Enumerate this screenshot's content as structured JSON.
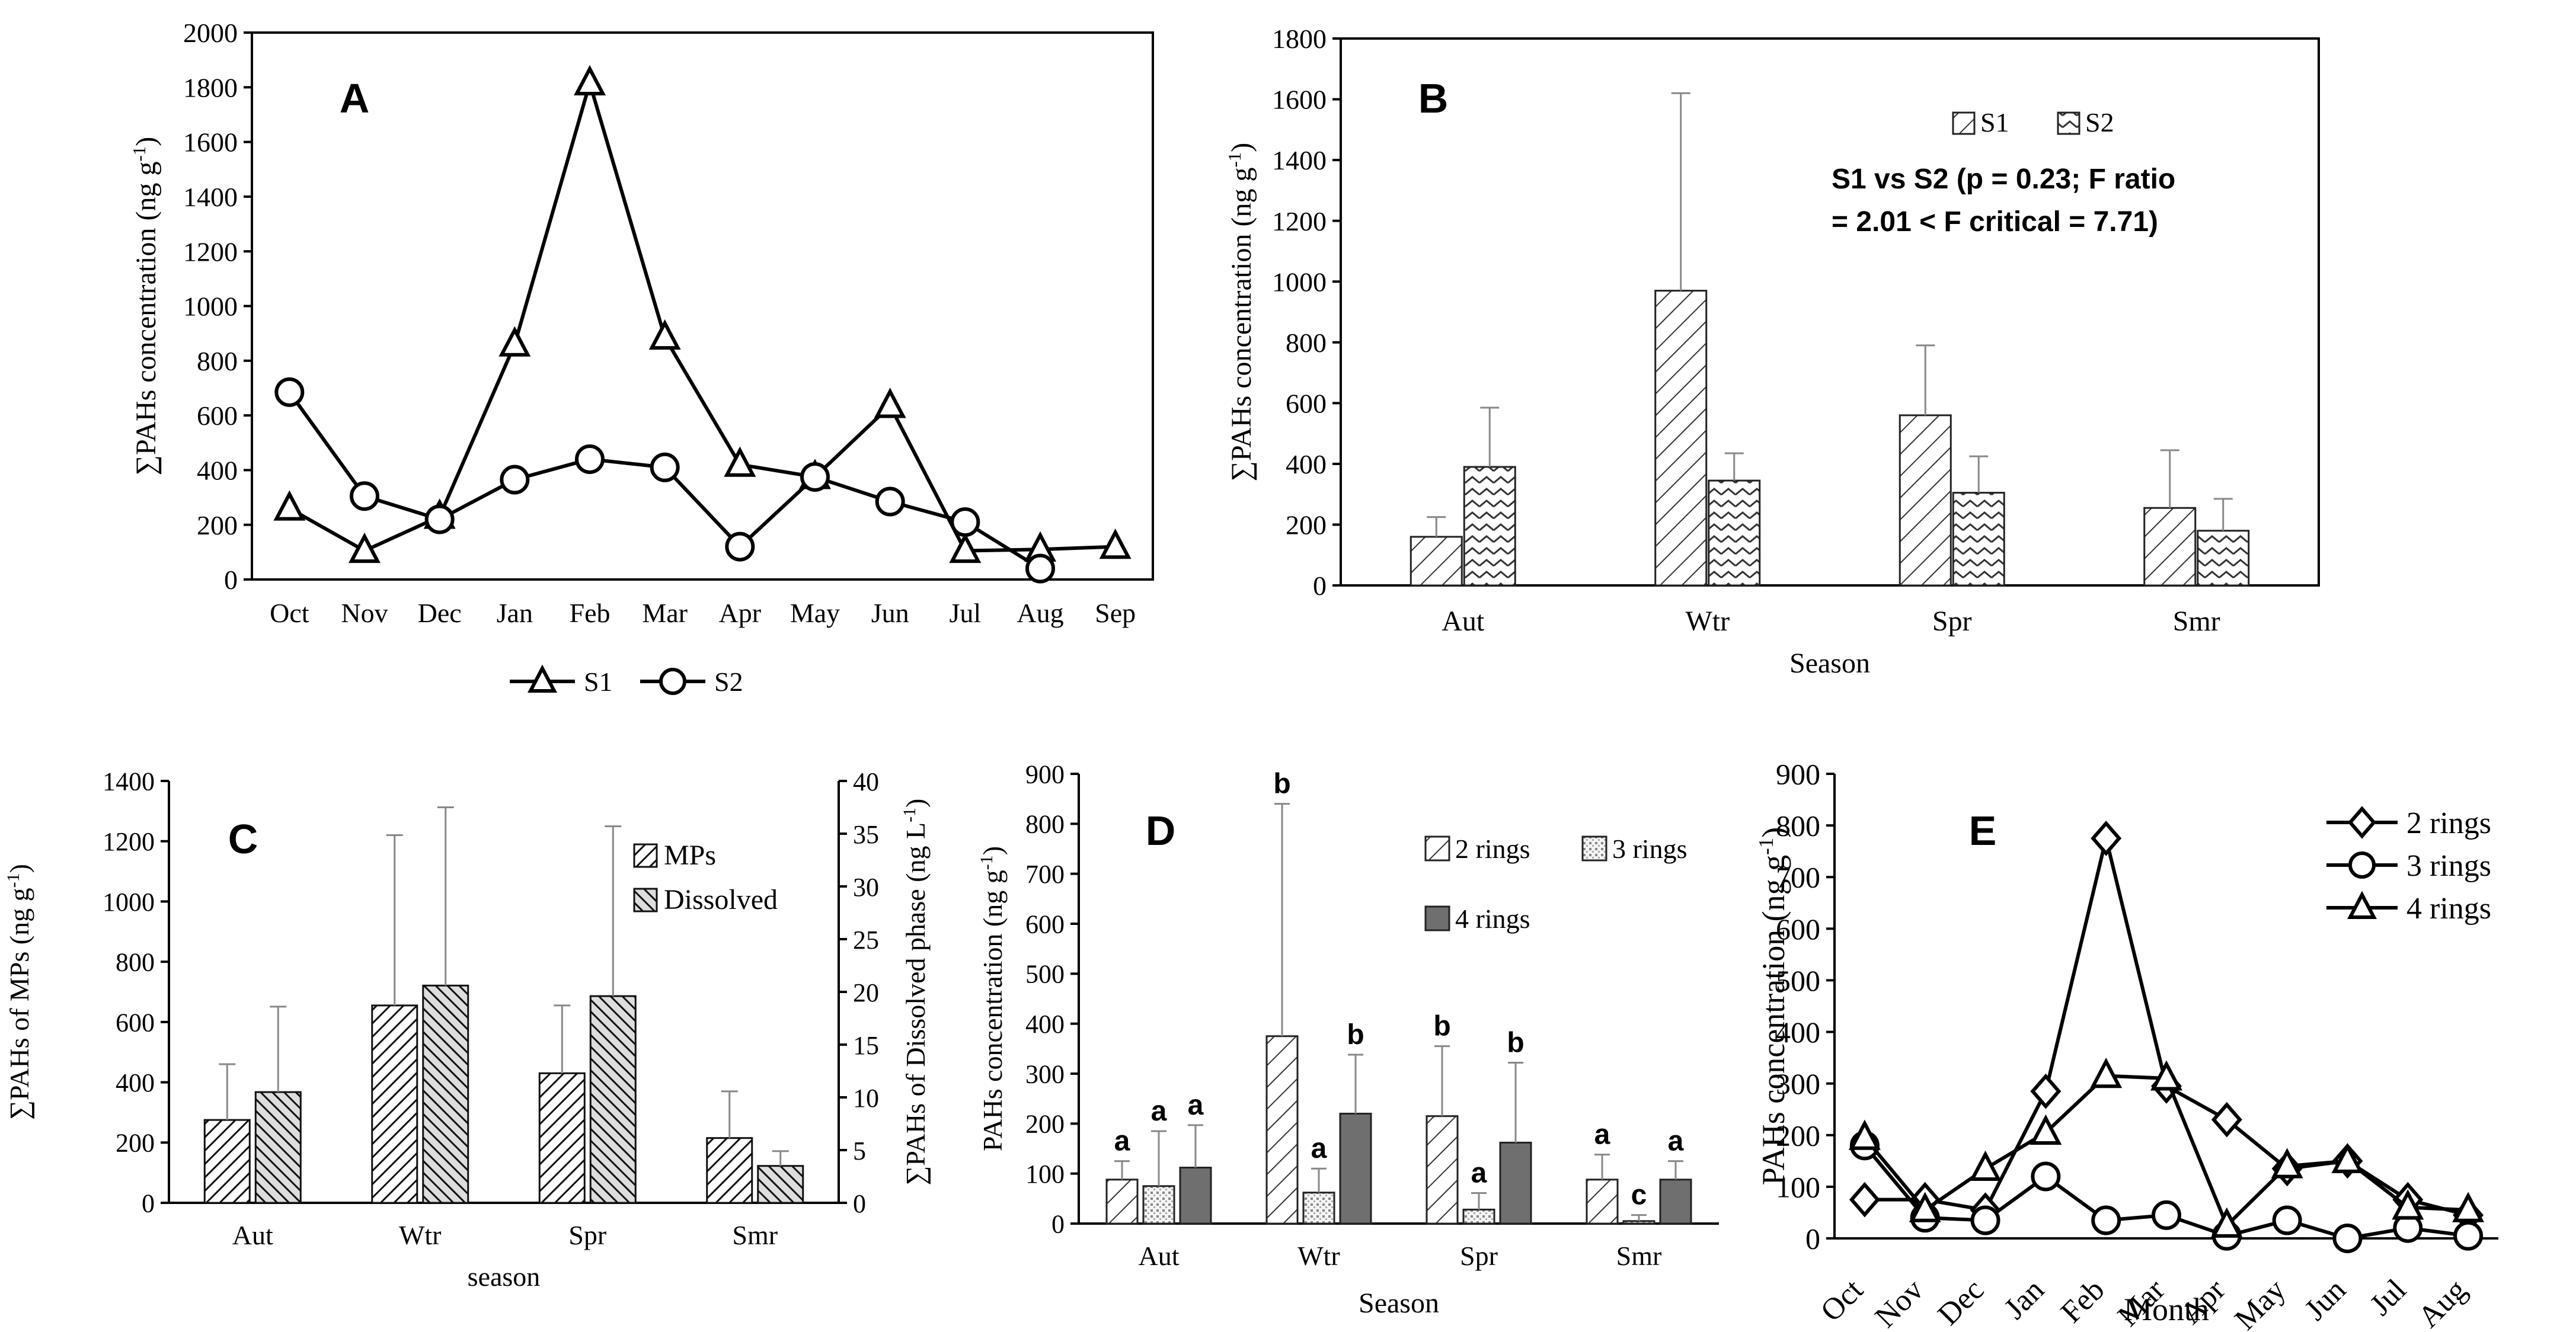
{
  "chart_data": [
    {
      "id": "A",
      "panel_label": "A",
      "type": "line",
      "categories": [
        "Oct",
        "Nov",
        "Dec",
        "Jan",
        "Feb",
        "Mar",
        "Apr",
        "May",
        "Jun",
        "Jul",
        "Aug",
        "Sep"
      ],
      "series": [
        {
          "name": "S1",
          "marker": "triangle",
          "values": [
            260,
            105,
            230,
            860,
            1815,
            885,
            420,
            375,
            635,
            105,
            110,
            120
          ]
        },
        {
          "name": "S2",
          "marker": "circle",
          "values": [
            685,
            305,
            220,
            365,
            440,
            410,
            120,
            375,
            285,
            210,
            40,
            null
          ]
        }
      ],
      "ylabel": "∑PAHs concentration (ng g-1)",
      "ylim": [
        0,
        2000
      ],
      "yticks": [
        0,
        200,
        400,
        600,
        800,
        1000,
        1200,
        1400,
        1600,
        1800,
        2000
      ],
      "legend": "bottom"
    },
    {
      "id": "B",
      "panel_label": "B",
      "type": "bar",
      "categories": [
        "Aut",
        "Wtr",
        "Spr",
        "Smr"
      ],
      "series": [
        {
          "name": "S1",
          "pattern": "hatch",
          "values": [
            160,
            970,
            560,
            255
          ],
          "errors": [
            65,
            650,
            230,
            190
          ]
        },
        {
          "name": "S2",
          "pattern": "zigzag",
          "values": [
            390,
            345,
            305,
            180
          ],
          "errors": [
            195,
            90,
            120,
            105
          ]
        }
      ],
      "xlabel": "Season",
      "ylabel": "∑PAHs concentration (ng g-1)",
      "ylim": [
        0,
        1800
      ],
      "yticks": [
        0,
        200,
        400,
        600,
        800,
        1000,
        1200,
        1400,
        1600,
        1800
      ],
      "annotation": [
        "S1 vs S2 (p = 0.23; F ratio",
        "= 2.01 < F critical = 7.71)"
      ],
      "legend": "top-right"
    },
    {
      "id": "C",
      "panel_label": "C",
      "type": "bar",
      "categories": [
        "Aut",
        "Wtr",
        "Spr",
        "Smr"
      ],
      "series": [
        {
          "name": "MPs",
          "axis": "left",
          "pattern": "hatch-dense",
          "values": [
            275,
            655,
            430,
            215
          ],
          "errors": [
            185,
            565,
            225,
            155
          ]
        },
        {
          "name": "Dissolved",
          "axis": "right",
          "pattern": "hatch-dark",
          "values": [
            10.5,
            20.6,
            19.6,
            3.5
          ],
          "errors": [
            8.1,
            16.9,
            16.1,
            1.4
          ]
        }
      ],
      "xlabel": "season",
      "ylabel": "∑PAHs of MPs (ng g-1)",
      "y2label": "∑PAHs of Dissolved phase (ng L-1)",
      "ylim": [
        0,
        1400
      ],
      "yticks": [
        0,
        200,
        400,
        600,
        800,
        1000,
        1200,
        1400
      ],
      "y2lim": [
        0,
        40
      ],
      "y2ticks": [
        0,
        5,
        10,
        15,
        20,
        25,
        30,
        35,
        40
      ],
      "legend": "top-right"
    },
    {
      "id": "D",
      "panel_label": "D",
      "type": "bar",
      "categories": [
        "Aut",
        "Wtr",
        "Spr",
        "Smr"
      ],
      "series": [
        {
          "name": "2 rings",
          "pattern": "hatch",
          "values": [
            88,
            375,
            215,
            88
          ],
          "errors": [
            37,
            465,
            140,
            50
          ],
          "letters": [
            "a",
            "b",
            "b",
            "a"
          ]
        },
        {
          "name": "3 rings",
          "pattern": "dots",
          "values": [
            75,
            62,
            28,
            5
          ],
          "errors": [
            110,
            48,
            33,
            12
          ],
          "letters": [
            "a",
            "a",
            "a",
            "c"
          ]
        },
        {
          "name": "4 rings",
          "pattern": "solid-grey",
          "values": [
            112,
            220,
            162,
            88
          ],
          "errors": [
            85,
            118,
            160,
            37
          ],
          "letters": [
            "a",
            "b",
            "b",
            "a"
          ]
        }
      ],
      "xlabel": "Season",
      "ylabel": "PAHs concentration (ng g-1)",
      "ylim": [
        0,
        900
      ],
      "yticks": [
        0,
        100,
        200,
        300,
        400,
        500,
        600,
        700,
        800,
        900
      ],
      "legend": "top-right"
    },
    {
      "id": "E",
      "panel_label": "E",
      "type": "line",
      "categories": [
        "Oct",
        "Nov",
        "Dec",
        "Jan",
        "Feb",
        "Mar",
        "Apr",
        "May",
        "Jun",
        "Jul",
        "Aug"
      ],
      "series": [
        {
          "name": "2 rings",
          "marker": "diamond",
          "values": [
            75,
            75,
            55,
            285,
            775,
            295,
            230,
            135,
            150,
            75,
            45
          ]
        },
        {
          "name": "3 rings",
          "marker": "circle",
          "values": [
            180,
            40,
            35,
            120,
            35,
            45,
            5,
            35,
            0,
            20,
            5
          ]
        },
        {
          "name": "4 rings",
          "marker": "triangle",
          "values": [
            195,
            55,
            135,
            205,
            315,
            310,
            25,
            140,
            150,
            60,
            55
          ]
        }
      ],
      "xlabel": "Month",
      "ylabel": "PAHs concentration (ng g-1)",
      "ylim": [
        0,
        900
      ],
      "yticks": [
        0,
        100,
        200,
        300,
        400,
        500,
        600,
        700,
        800,
        900
      ],
      "legend": "top-right"
    }
  ]
}
